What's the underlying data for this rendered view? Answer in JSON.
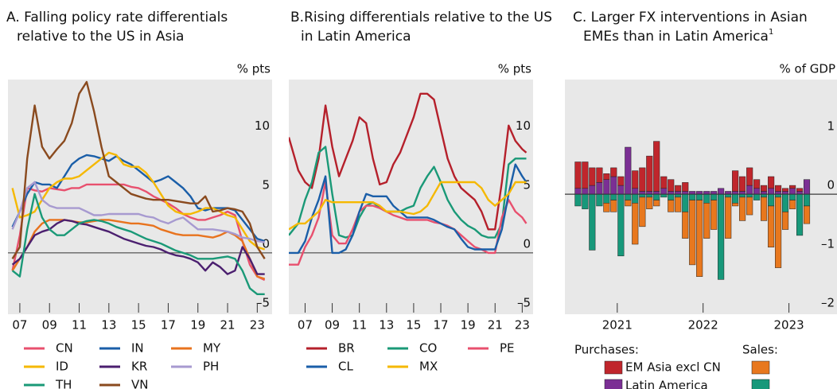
{
  "chart_data": [
    {
      "type": "line",
      "title": [
        "A. Falling policy rate differentials",
        "relative to the US in Asia"
      ],
      "y_unit": "% pts",
      "xlim": [
        2006.2,
        2024.0
      ],
      "ylim": [
        -5.2,
        14.7
      ],
      "xticks": [
        {
          "value": 2007,
          "label": "07"
        },
        {
          "value": 2009,
          "label": "09"
        },
        {
          "value": 2011,
          "label": "11"
        },
        {
          "value": 2013,
          "label": "13"
        },
        {
          "value": 2015,
          "label": "15"
        },
        {
          "value": 2017,
          "label": "17"
        },
        {
          "value": 2019,
          "label": "19"
        },
        {
          "value": 2021,
          "label": "21"
        },
        {
          "value": 2023,
          "label": "23"
        }
      ],
      "yticks": [
        {
          "value": -5,
          "label": "–5"
        },
        0,
        5,
        10
      ],
      "x": [
        2006.5,
        2007,
        2007.5,
        2008,
        2008.5,
        2009,
        2009.5,
        2010,
        2010.5,
        2011,
        2011.5,
        2012,
        2012.5,
        2013,
        2013.5,
        2014,
        2014.5,
        2015,
        2015.5,
        2016,
        2016.5,
        2017,
        2017.5,
        2018,
        2018.5,
        2019,
        2019.5,
        2020,
        2020.5,
        2021,
        2021.5,
        2022,
        2022.5,
        2023,
        2023.5
      ],
      "series": [
        {
          "name": "CN",
          "color": "#e8506e",
          "values": [
            -1.5,
            1.5,
            5.5,
            5.3,
            5.2,
            5.5,
            5.4,
            5.3,
            5.5,
            5.5,
            5.8,
            5.8,
            5.8,
            5.8,
            5.8,
            5.8,
            5.6,
            5.5,
            5.2,
            4.8,
            4.5,
            4.2,
            3.8,
            3.3,
            3,
            2.8,
            2.8,
            3,
            3.2,
            3.5,
            3.2,
            1,
            -1,
            -2,
            -2.3
          ]
        },
        {
          "name": "IN",
          "color": "#1a5ea8",
          "values": [
            2.2,
            3.5,
            5,
            6,
            5.8,
            5.8,
            5.5,
            6.5,
            7.5,
            8,
            8.3,
            8.2,
            8,
            7.8,
            8.2,
            7.8,
            7.5,
            7,
            6.5,
            6,
            6.2,
            6.5,
            6,
            5.5,
            4.8,
            3.8,
            3.6,
            3.8,
            3.8,
            3.8,
            3.6,
            2.8,
            2,
            1.2,
            1
          ]
        },
        {
          "name": "MY",
          "color": "#e8731e",
          "values": [
            -1.5,
            -0.5,
            0.5,
            1.8,
            2.5,
            2.8,
            2.8,
            2.8,
            2.7,
            2.6,
            2.6,
            2.7,
            2.8,
            2.8,
            2.7,
            2.6,
            2.5,
            2.5,
            2.4,
            2.3,
            2,
            1.8,
            1.6,
            1.5,
            1.5,
            1.5,
            1.4,
            1.3,
            1.5,
            1.8,
            1.5,
            1,
            -0.5,
            -2,
            -2.2
          ]
        },
        {
          "name": "ID",
          "color": "#f5b800",
          "values": [
            5.5,
            3,
            3.2,
            3.5,
            4.5,
            5.5,
            6,
            6.3,
            6.3,
            6.5,
            7,
            7.5,
            8,
            8.5,
            8.3,
            7.5,
            7.3,
            7.3,
            6.8,
            6,
            5,
            4,
            3.5,
            3.3,
            3.3,
            3.5,
            3.8,
            3.8,
            3.5,
            3.2,
            3,
            2,
            1,
            0.5,
            0.3
          ]
        },
        {
          "name": "KR",
          "color": "#4b1f6f",
          "values": [
            -1,
            -0.5,
            0.5,
            1.5,
            1.8,
            2,
            2.5,
            2.8,
            2.7,
            2.5,
            2.4,
            2.2,
            2,
            1.8,
            1.5,
            1.2,
            1,
            0.8,
            0.6,
            0.5,
            0.3,
            0,
            -0.2,
            -0.3,
            -0.5,
            -0.8,
            -1.5,
            -0.8,
            -1.2,
            -1.8,
            -1.5,
            0.5,
            -0.5,
            -1.8,
            -1.8
          ]
        },
        {
          "name": "PH",
          "color": "#a79ad0",
          "values": [
            2,
            3.5,
            5.5,
            6,
            4.5,
            4,
            3.8,
            3.8,
            3.8,
            3.8,
            3.5,
            3.2,
            3.2,
            3.3,
            3.3,
            3.3,
            3.3,
            3.3,
            3.1,
            3,
            2.7,
            2.5,
            2.8,
            3,
            2.5,
            2,
            2,
            2,
            1.9,
            1.8,
            1.6,
            1.3,
            1.2,
            1,
            0.9
          ]
        },
        {
          "name": "TH",
          "color": "#1a9977",
          "values": [
            -1.5,
            -2,
            2,
            5,
            3,
            2,
            1.5,
            1.5,
            2,
            2.5,
            2.7,
            2.8,
            2.7,
            2.5,
            2.2,
            2,
            1.8,
            1.5,
            1.2,
            1,
            0.8,
            0.5,
            0.2,
            0,
            -0.2,
            -0.5,
            -0.5,
            -0.5,
            -0.4,
            -0.3,
            -0.5,
            -1.5,
            -3,
            -3.5,
            -3.5
          ]
        },
        {
          "name": "VN",
          "color": "#8a4a1e",
          "values": [
            -0.5,
            0.5,
            8,
            12.5,
            9,
            8,
            8.8,
            9.5,
            11,
            13.5,
            14.5,
            12,
            9,
            6.5,
            6,
            5.5,
            5,
            4.8,
            4.6,
            4.5,
            4.5,
            4.5,
            4.4,
            4.3,
            4.2,
            4.2,
            4.8,
            3.5,
            3.6,
            3.8,
            3.7,
            3.5,
            2.5,
            0.5,
            -0.5
          ]
        }
      ]
    },
    {
      "type": "line",
      "title": [
        "B.Rising differentials relative to the US",
        "in Latin America"
      ],
      "y_unit": "% pts",
      "xlim": [
        2005.8,
        2023.8
      ],
      "ylim": [
        -5.2,
        14.7
      ],
      "xticks": [
        {
          "value": 2007,
          "label": "07"
        },
        {
          "value": 2009,
          "label": "09"
        },
        {
          "value": 2011,
          "label": "11"
        },
        {
          "value": 2013,
          "label": "13"
        },
        {
          "value": 2015,
          "label": "15"
        },
        {
          "value": 2017,
          "label": "17"
        },
        {
          "value": 2019,
          "label": "19"
        },
        {
          "value": 2021,
          "label": "21"
        },
        {
          "value": 2023,
          "label": "23"
        }
      ],
      "yticks": [
        {
          "value": -5,
          "label": "–5"
        },
        0,
        5,
        10
      ],
      "x": [
        2005.8,
        2006.5,
        2007,
        2007.5,
        2008,
        2008.5,
        2009,
        2009.5,
        2010,
        2010.5,
        2011,
        2011.5,
        2012,
        2012.5,
        2013,
        2013.5,
        2014,
        2014.5,
        2015,
        2015.5,
        2016,
        2016.5,
        2017,
        2017.5,
        2018,
        2018.5,
        2019,
        2019.5,
        2020,
        2020.5,
        2021,
        2021.5,
        2022,
        2022.5,
        2023,
        2023.3
      ],
      "series": [
        {
          "name": "BR",
          "color": "#b5202b",
          "values": [
            9.8,
            7,
            6,
            5.5,
            8,
            12.5,
            9,
            6.5,
            8,
            9.5,
            11.5,
            11,
            8,
            5.8,
            6,
            7.5,
            8.5,
            10,
            11.5,
            13.5,
            13.5,
            13,
            10.5,
            8,
            6.5,
            5.5,
            5,
            4.5,
            3.5,
            2,
            2,
            6,
            10.8,
            9.5,
            8.8,
            8.5
          ]
        },
        {
          "name": "CO",
          "color": "#1a9977",
          "values": [
            1.5,
            2.5,
            4.5,
            6,
            8.5,
            9,
            5,
            1.5,
            1.3,
            1.5,
            3,
            4,
            4.3,
            3.8,
            3.5,
            3.5,
            3.5,
            3.8,
            4,
            5.5,
            6.5,
            7.3,
            6,
            4.5,
            3.5,
            2.8,
            2.3,
            2,
            1.5,
            1.3,
            1.3,
            2.5,
            7.5,
            8,
            8,
            8
          ]
        },
        {
          "name": "PE",
          "color": "#e8506e",
          "values": [
            -1,
            -1,
            0.5,
            1.5,
            3,
            6,
            1.5,
            0.8,
            0.8,
            2,
            3.5,
            4,
            4,
            3.8,
            3.5,
            3.2,
            3,
            2.8,
            2.8,
            2.8,
            2.8,
            2.6,
            2.5,
            2.3,
            2,
            1.5,
            1,
            0.5,
            0.3,
            0,
            0,
            3,
            4.5,
            3.5,
            3,
            2.5
          ]
        },
        {
          "name": "CL",
          "color": "#1a5ea8",
          "values": [
            0,
            0,
            1,
            3,
            4.5,
            6.5,
            0,
            0,
            0.3,
            1.5,
            3.5,
            5,
            4.8,
            4.8,
            4.8,
            4,
            3.5,
            3,
            3,
            3,
            3,
            2.8,
            2.5,
            2.2,
            2,
            1.2,
            0.5,
            0.3,
            0.3,
            0.3,
            0.3,
            2,
            5,
            7.5,
            6.5,
            6
          ]
        },
        {
          "name": "MX",
          "color": "#f5b800",
          "values": [
            2,
            2.5,
            2.5,
            3,
            3.5,
            4.5,
            4.3,
            4.3,
            4.3,
            4.3,
            4.3,
            4.3,
            4.3,
            4,
            3.5,
            3.5,
            3.5,
            3.4,
            3.3,
            3.5,
            4,
            5,
            6,
            6,
            6,
            6,
            6,
            6,
            5.5,
            4.5,
            4,
            4.5,
            5,
            6,
            6,
            6
          ]
        }
      ]
    },
    {
      "type": "bar",
      "title": [
        "C. Larger FX interventions in Asian",
        "EMEs than in Latin America"
      ],
      "title_note": "1",
      "y_unit": "% of GDP",
      "xlim": [
        2020.89,
        2024.06
      ],
      "ylim": [
        -2.04,
        1.95
      ],
      "xticks": [
        {
          "value": 2021.5,
          "label": "2021"
        },
        {
          "value": 2022.5,
          "label": "2022"
        },
        {
          "value": 2023.5,
          "label": "2023"
        }
      ],
      "yticks": [
        {
          "value": -2,
          "label": "–2"
        },
        {
          "value": -1,
          "label": "–1"
        },
        0,
        1
      ],
      "legend_headers": [
        "Purchases:",
        "Sales:"
      ],
      "x": [
        2021.042,
        2021.125,
        2021.208,
        2021.292,
        2021.375,
        2021.458,
        2021.542,
        2021.625,
        2021.708,
        2021.792,
        2021.875,
        2021.958,
        2022.042,
        2022.125,
        2022.208,
        2022.292,
        2022.375,
        2022.458,
        2022.542,
        2022.625,
        2022.708,
        2022.792,
        2022.875,
        2022.958,
        2023.042,
        2023.125,
        2023.208,
        2023.292,
        2023.375,
        2023.458,
        2023.542,
        2023.625,
        2023.708
      ],
      "series": [
        {
          "name": "EM Asia excl CN",
          "purchases": {
            "color": "#c0262c",
            "values": [
              0.45,
              0.45,
              0.3,
              0.25,
              0.1,
              0.15,
              0.15,
              0,
              0.3,
              0.4,
              0.6,
              0.85,
              0.2,
              0.2,
              0.1,
              0.15,
              0,
              0,
              0,
              0,
              0,
              0,
              0.35,
              0.25,
              0.3,
              0.15,
              0.1,
              0.2,
              0.1,
              0.05,
              0.05,
              0.05,
              0
            ]
          },
          "sales": {
            "color": "#e8781e",
            "values": [
              0,
              0,
              0,
              0,
              -0.15,
              -0.2,
              0,
              -0.1,
              -0.7,
              -0.5,
              -0.2,
              -0.1,
              0,
              -0.2,
              -0.25,
              -0.45,
              -1.1,
              -1.3,
              -0.6,
              -0.5,
              0,
              -0.7,
              -0.05,
              -0.4,
              -0.3,
              0,
              -0.4,
              -0.7,
              -1.2,
              -0.3,
              -0.15,
              0,
              -0.3
            ]
          }
        },
        {
          "name": "Latin America",
          "purchases": {
            "color": "#7b2f94",
            "values": [
              0.1,
              0.1,
              0.15,
              0.2,
              0.25,
              0.3,
              0.15,
              0.8,
              0.1,
              0.05,
              0.05,
              0.05,
              0.1,
              0.05,
              0.05,
              0.05,
              0.05,
              0.05,
              0.05,
              0.05,
              0.1,
              0.05,
              0.05,
              0.05,
              0.15,
              0.1,
              0.05,
              0.1,
              0.05,
              0.05,
              0.1,
              0.05,
              0.25
            ]
          },
          "sales": {
            "color": "#17987a",
            "values": [
              -0.2,
              -0.25,
              -0.95,
              -0.2,
              -0.15,
              -0.1,
              -1.05,
              -0.1,
              -0.15,
              -0.05,
              -0.05,
              -0.1,
              -0.05,
              -0.1,
              -0.05,
              -0.3,
              -0.1,
              -0.1,
              -0.15,
              -0.1,
              -1.45,
              -0.05,
              -0.15,
              -0.05,
              -0.05,
              -0.1,
              -0.05,
              -0.2,
              -0.05,
              -0.3,
              -0.1,
              -0.7,
              -0.2
            ]
          }
        }
      ]
    }
  ]
}
